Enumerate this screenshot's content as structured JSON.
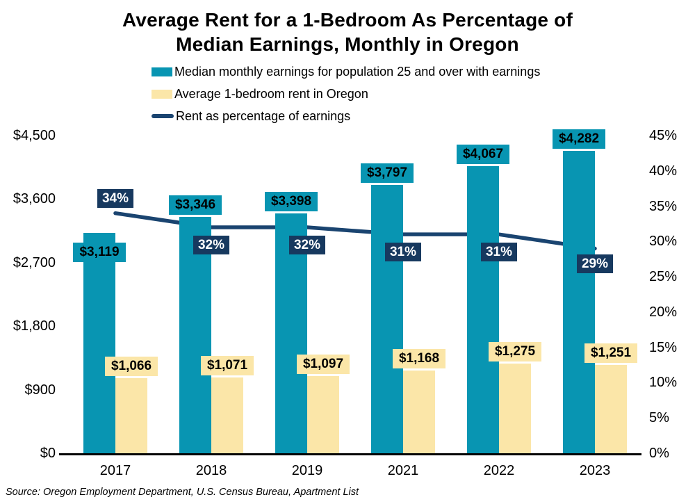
{
  "title": {
    "line1": "Average Rent for a 1-Bedroom As Percentage of",
    "line2": "Median Earnings, Monthly in Oregon"
  },
  "legend": {
    "items": [
      {
        "label": "Median monthly earnings for population 25 and over with earnings",
        "swatch": "bar",
        "color": "#0895B2"
      },
      {
        "label": "Average 1-bedroom rent in Oregon",
        "swatch": "bar",
        "color": "#FBE6A8"
      },
      {
        "label": "Rent as percentage of earnings",
        "swatch": "line",
        "color": "#1A4470"
      }
    ]
  },
  "source_note": "Source: Oregon Employment Department, U.S. Census Bureau, Apartment List",
  "colors": {
    "earnings_bar": "#0895B2",
    "rent_bar": "#FBE6A8",
    "percent_line": "#1A4470",
    "percent_label_bg": "#17395F",
    "axis_line": "#000000",
    "text": "#000000"
  },
  "chart_data": {
    "type": "bar",
    "subtype": "grouped bars with secondary-axis line",
    "title": "Average Rent for a 1-Bedroom As Percentage of Median Earnings, Monthly in Oregon",
    "categories": [
      "2017",
      "2018",
      "2019",
      "2021",
      "2022",
      "2023"
    ],
    "series": [
      {
        "name": "Median monthly earnings for population 25 and over with earnings",
        "type": "bar",
        "axis": "left",
        "values": [
          3119,
          3346,
          3398,
          3797,
          4067,
          4282
        ],
        "labels": [
          "$3,119",
          "$3,346",
          "$3,398",
          "$3,797",
          "$4,067",
          "$4,282"
        ]
      },
      {
        "name": "Average 1-bedroom rent in Oregon",
        "type": "bar",
        "axis": "left",
        "values": [
          1066,
          1071,
          1097,
          1168,
          1275,
          1251
        ],
        "labels": [
          "$1,066",
          "$1,071",
          "$1,097",
          "$1,168",
          "$1,275",
          "$1,251"
        ]
      },
      {
        "name": "Rent as percentage of earnings",
        "type": "line",
        "axis": "right",
        "values": [
          34,
          32,
          32,
          31,
          31,
          29
        ],
        "labels": [
          "34%",
          "32%",
          "32%",
          "31%",
          "31%",
          "29%"
        ]
      }
    ],
    "left_axis": {
      "ticks": [
        "$0",
        "$900",
        "$1,800",
        "$2,700",
        "$3,600",
        "$4,500"
      ],
      "tick_values": [
        0,
        900,
        1800,
        2700,
        3600,
        4500
      ],
      "min": 0,
      "max": 4500
    },
    "right_axis": {
      "ticks": [
        "0%",
        "5%",
        "10%",
        "15%",
        "20%",
        "25%",
        "30%",
        "35%",
        "40%",
        "45%"
      ],
      "tick_values": [
        0,
        5,
        10,
        15,
        20,
        25,
        30,
        35,
        40,
        45
      ],
      "min": 0,
      "max": 45
    },
    "grid": false,
    "legend_position": "top-left under title"
  }
}
